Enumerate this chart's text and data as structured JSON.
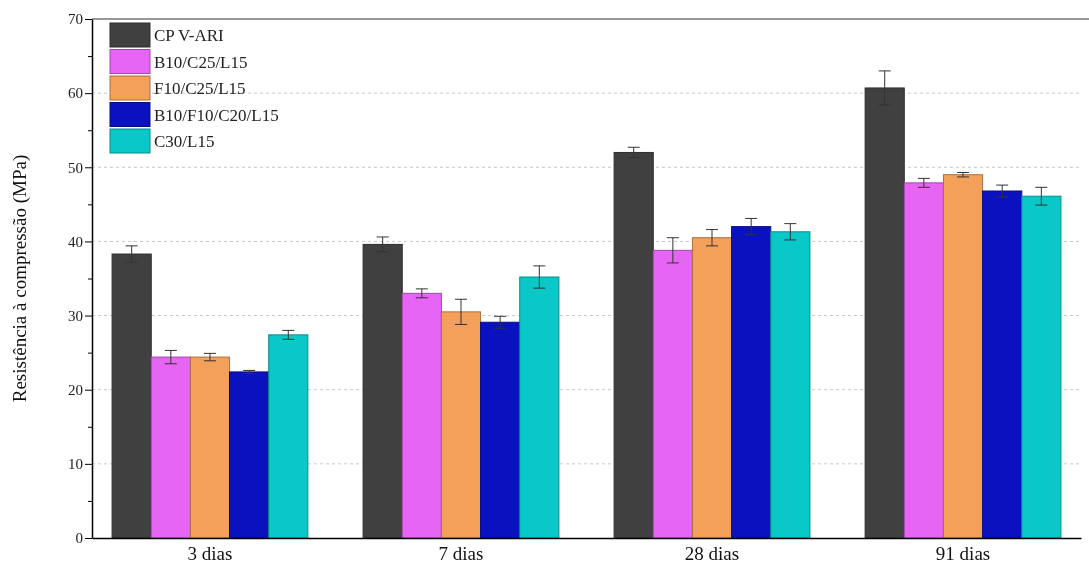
{
  "chart_data": {
    "type": "bar",
    "ylabel": "Resistência à compressão (MPa)",
    "categories": [
      "3 dias",
      "7 dias",
      "28 dias",
      "91 dias"
    ],
    "series": [
      {
        "name": "CP V-ARI",
        "color": "#404040",
        "values": [
          38.3,
          39.6,
          52.0,
          60.7
        ],
        "errors": [
          1.1,
          1.0,
          0.7,
          2.3
        ]
      },
      {
        "name": "B10/C25/L15",
        "color": "#e665f5",
        "values": [
          24.4,
          33.0,
          38.8,
          47.9
        ],
        "errors": [
          0.9,
          0.6,
          1.7,
          0.6
        ]
      },
      {
        "name": "F10/C25/L15",
        "color": "#f2a05a",
        "values": [
          24.4,
          30.5,
          40.5,
          49.0
        ],
        "errors": [
          0.5,
          1.7,
          1.1,
          0.3
        ]
      },
      {
        "name": "B10/F10/C20/L15",
        "color": "#0a12c0",
        "values": [
          22.4,
          29.1,
          42.0,
          46.8
        ],
        "errors": [
          0.2,
          0.8,
          1.1,
          0.8
        ]
      },
      {
        "name": "C30/L15",
        "color": "#0ac8c8",
        "values": [
          27.4,
          35.2,
          41.3,
          46.1
        ],
        "errors": [
          0.6,
          1.5,
          1.1,
          1.2
        ]
      }
    ],
    "ylim": [
      0,
      70
    ],
    "yticks": [
      0,
      {
        "value": 5,
        "label": null
      },
      10,
      {
        "value": 15,
        "label": null
      },
      20,
      {
        "value": 25,
        "label": null
      },
      30,
      {
        "value": 35,
        "label": null
      },
      40,
      {
        "value": 45,
        "label": null
      },
      50,
      {
        "value": 55,
        "label": null
      },
      60,
      {
        "value": 65,
        "label": null
      },
      70
    ],
    "grid": "y",
    "legend": "top left"
  }
}
